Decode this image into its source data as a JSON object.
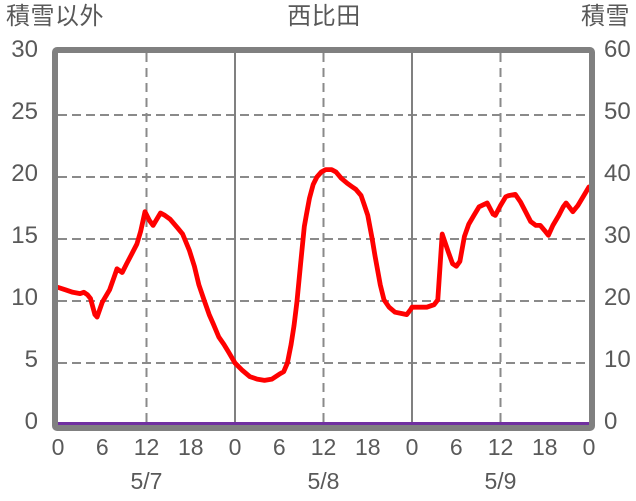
{
  "header": {
    "left_axis_title": "積雪以外",
    "station_name": "西比田",
    "right_axis_title": "積雪"
  },
  "colors": {
    "background": "#ffffff",
    "text": "#595959",
    "frame": "#808080",
    "grid": "#8a8a8a",
    "temperature_line": "#ff0000",
    "snow_line": "#7030a0"
  },
  "chart_data": {
    "type": "line",
    "title": "西比田",
    "left_axis": {
      "title": "積雪以外",
      "min": 0,
      "max": 30,
      "tick_labels": [
        "0",
        "5",
        "10",
        "15",
        "20",
        "25",
        "30"
      ]
    },
    "right_axis": {
      "title": "積雪",
      "min": 0,
      "max": 60,
      "tick_labels": [
        "0",
        "10",
        "20",
        "30",
        "40",
        "50",
        "60"
      ]
    },
    "x_axis": {
      "unit": "hours",
      "span_hours": 72,
      "tick_step_hours": 6,
      "tick_labels": [
        "0",
        "6",
        "12",
        "18",
        "0",
        "6",
        "12",
        "18",
        "0",
        "6",
        "12",
        "18",
        "0"
      ],
      "date_labels": [
        "5/7",
        "5/8",
        "5/9"
      ],
      "solid_gridline_hours": [
        24,
        48
      ],
      "dashed_gridline_hours": [
        12,
        36,
        60
      ]
    },
    "grid": {
      "horizontal_values": [
        5,
        10,
        15,
        20,
        25
      ],
      "style": "dashed"
    },
    "series": [
      {
        "name": "積雪以外",
        "axis": "left",
        "color": "#ff0000",
        "stroke_width": 4.8,
        "offset_y": 0,
        "points": [
          [
            0,
            11.1
          ],
          [
            1,
            10.9
          ],
          [
            2,
            10.7
          ],
          [
            3,
            10.6
          ],
          [
            3.5,
            10.7
          ],
          [
            4,
            10.5
          ],
          [
            4.4,
            10.2
          ],
          [
            5,
            8.9
          ],
          [
            5.3,
            8.7
          ],
          [
            6,
            9.9
          ],
          [
            7,
            10.9
          ],
          [
            7.6,
            11.9
          ],
          [
            8,
            12.6
          ],
          [
            8.7,
            12.3
          ],
          [
            9.3,
            13.0
          ],
          [
            10,
            13.8
          ],
          [
            10.7,
            14.6
          ],
          [
            11.2,
            15.6
          ],
          [
            11.8,
            17.2
          ],
          [
            12.4,
            16.5
          ],
          [
            12.9,
            16.1
          ],
          [
            13.9,
            17.1
          ],
          [
            14.5,
            16.9
          ],
          [
            15.2,
            16.6
          ],
          [
            16.2,
            15.9
          ],
          [
            16.9,
            15.4
          ],
          [
            17.8,
            14.1
          ],
          [
            18.5,
            12.8
          ],
          [
            19.1,
            11.3
          ],
          [
            19.8,
            10.1
          ],
          [
            20.5,
            8.9
          ],
          [
            21.1,
            8.1
          ],
          [
            21.8,
            7.1
          ],
          [
            22.5,
            6.5
          ],
          [
            23.1,
            5.9
          ],
          [
            24,
            5.0
          ],
          [
            25,
            4.4
          ],
          [
            26,
            3.9
          ],
          [
            27,
            3.7
          ],
          [
            28,
            3.6
          ],
          [
            29,
            3.7
          ],
          [
            30,
            4.1
          ],
          [
            30.6,
            4.3
          ],
          [
            31.1,
            5.0
          ],
          [
            31.6,
            6.5
          ],
          [
            32,
            8.0
          ],
          [
            32.4,
            9.9
          ],
          [
            32.9,
            13.0
          ],
          [
            33.4,
            16.0
          ],
          [
            33.7,
            17.0
          ],
          [
            34.1,
            18.3
          ],
          [
            34.6,
            19.4
          ],
          [
            35.1,
            20.0
          ],
          [
            35.7,
            20.4
          ],
          [
            36.3,
            20.6
          ],
          [
            37.1,
            20.6
          ],
          [
            37.7,
            20.4
          ],
          [
            38.4,
            19.9
          ],
          [
            39.2,
            19.5
          ],
          [
            39.9,
            19.2
          ],
          [
            40.4,
            19.0
          ],
          [
            41.1,
            18.5
          ],
          [
            41.5,
            17.8
          ],
          [
            42,
            16.9
          ],
          [
            42.6,
            15.0
          ],
          [
            43,
            13.6
          ],
          [
            43.7,
            11.3
          ],
          [
            44.2,
            10.1
          ],
          [
            44.9,
            9.5
          ],
          [
            45.7,
            9.1
          ],
          [
            46.5,
            9.0
          ],
          [
            47.3,
            8.9
          ],
          [
            47.8,
            9.3
          ],
          [
            48,
            9.5
          ],
          [
            49,
            9.5
          ],
          [
            50,
            9.5
          ],
          [
            51,
            9.7
          ],
          [
            51.5,
            10.1
          ],
          [
            52.1,
            15.4
          ],
          [
            52.9,
            14.0
          ],
          [
            53.5,
            13.0
          ],
          [
            54,
            12.8
          ],
          [
            54.5,
            13.2
          ],
          [
            55.1,
            15.2
          ],
          [
            55.7,
            16.2
          ],
          [
            56.4,
            16.9
          ],
          [
            57.1,
            17.6
          ],
          [
            57.8,
            17.8
          ],
          [
            58.2,
            17.9
          ],
          [
            59,
            17.0
          ],
          [
            59.3,
            16.9
          ],
          [
            60,
            17.7
          ],
          [
            60.7,
            18.4
          ],
          [
            61.1,
            18.5
          ],
          [
            62,
            18.6
          ],
          [
            62.7,
            18.0
          ],
          [
            63.4,
            17.2
          ],
          [
            64.1,
            16.4
          ],
          [
            64.8,
            16.1
          ],
          [
            65.4,
            16.1
          ],
          [
            66.1,
            15.6
          ],
          [
            66.5,
            15.3
          ],
          [
            67.1,
            16.1
          ],
          [
            67.9,
            16.9
          ],
          [
            68.5,
            17.6
          ],
          [
            68.9,
            17.9
          ],
          [
            69.8,
            17.2
          ],
          [
            70.5,
            17.7
          ],
          [
            71.3,
            18.5
          ],
          [
            72,
            19.2
          ]
        ]
      },
      {
        "name": "積雪",
        "axis": "right",
        "color": "#7030a0",
        "stroke_width": 3.5,
        "offset_y": -1.2,
        "points": [
          [
            0,
            0
          ],
          [
            72,
            0
          ]
        ]
      }
    ]
  }
}
